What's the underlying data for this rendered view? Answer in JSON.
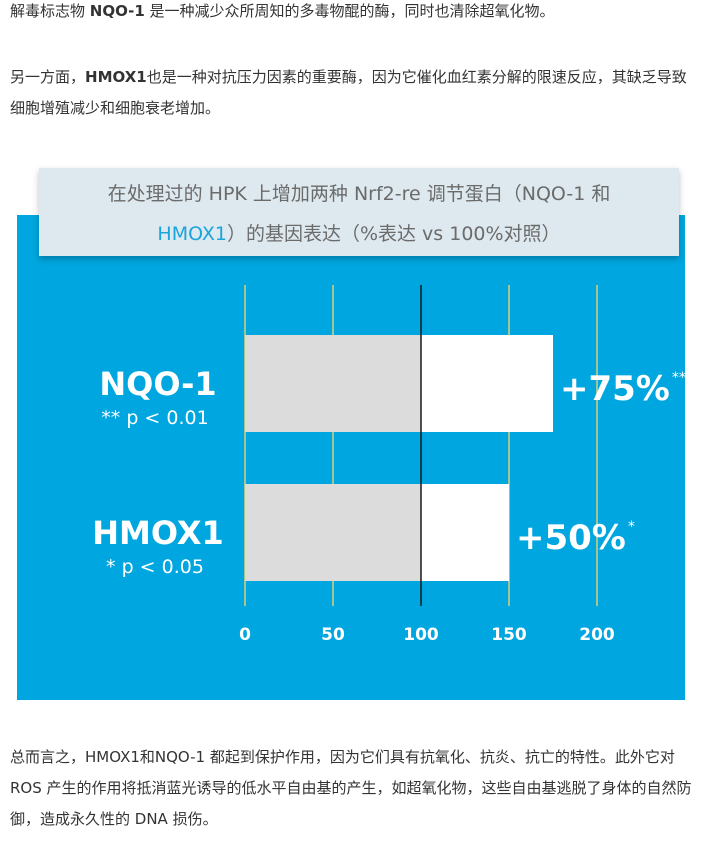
{
  "paragraphs": {
    "p1_pre": "解毒标志物 ",
    "p1_bold": "NQO-1",
    "p1_post": " 是一种减少众所周知的多毒物醌的酶，同时也清除超氧化物。",
    "p2_pre": "另一方面，",
    "p2_bold": "HMOX1",
    "p2_post": "也是一种对抗压力因素的重要酶，因为它催化血红素分解的限速反应，其缺乏导致细胞增殖减少和细胞衰老增加。",
    "p3": "总而言之，HMOX1和NQO-1 都起到保护作用，因为它们具有抗氧化、抗炎、抗亡的特性。此外它对 ROS 产生的作用将抵消蓝光诱导的低水平自由基的产生，如超氧化物，这些自由基逃脱了身体的自然防御，造成永久性的 DNA 损伤。"
  },
  "chart_data": {
    "type": "bar",
    "orientation": "horizontal",
    "title_line1": "在处理过的 HPK  上增加两种 Nrf2-re 调节蛋白（NQO-1 和",
    "title_line2_highlight": "HMOX1",
    "title_line2_rest": "）的基因表达（%表达 vs 100%对照）",
    "categories": [
      "NQO-1",
      "HMOX1"
    ],
    "significance": [
      "** p < 0.01",
      "* p < 0.05"
    ],
    "control_value": 100,
    "values": [
      175,
      150
    ],
    "value_labels": [
      "+75%",
      "+50%"
    ],
    "value_stars": [
      "**",
      "*"
    ],
    "x_ticks": [
      "0",
      "50",
      "100",
      "150",
      "200"
    ],
    "xlim": [
      0,
      200
    ],
    "grid": true,
    "colors": {
      "background": "#00a6df",
      "control_bar": "#dcdcdc",
      "increase_bar": "#ffffff",
      "gridline": "#d9cf7a",
      "baseline": "#1a1a1a",
      "text": "#ffffff",
      "title_highlight": "#1aa4dc"
    }
  }
}
